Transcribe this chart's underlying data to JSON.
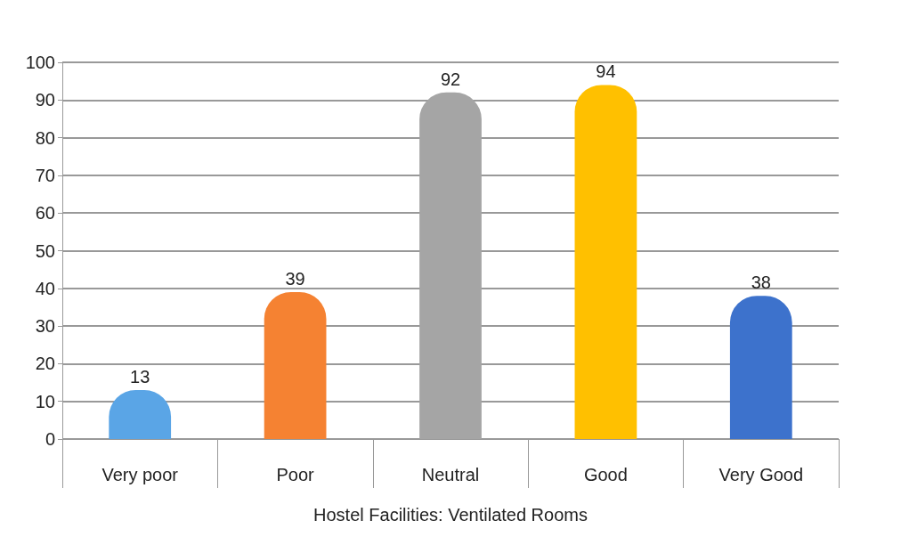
{
  "chart_data": {
    "type": "bar",
    "xlabel": "Hostel Facilities: Ventilated Rooms",
    "categories": [
      "Very poor",
      "Poor",
      "Neutral",
      "Good",
      "Very Good"
    ],
    "values": [
      13,
      39,
      92,
      94,
      38
    ],
    "colors": [
      "#5aa5e6",
      "#f58232",
      "#a5a5a5",
      "#ffc000",
      "#3d72cc"
    ],
    "ylim": [
      0,
      100
    ],
    "yticks": [
      0,
      10,
      20,
      30,
      40,
      50,
      60,
      70,
      80,
      90,
      100
    ],
    "grid": "y",
    "data_labels": true
  }
}
